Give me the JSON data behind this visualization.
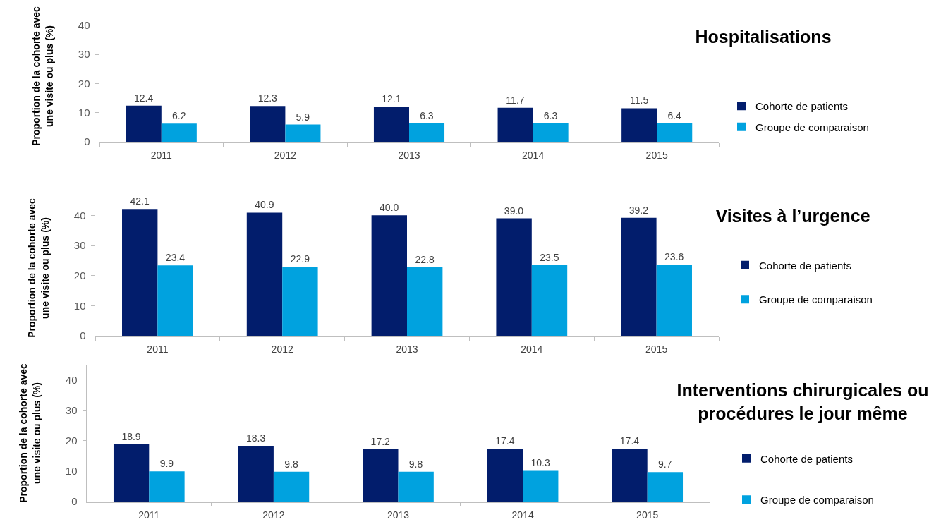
{
  "chart_data": [
    {
      "type": "bar",
      "title": "Hospitalisations",
      "ylabel": "Proportion de la cohorte avec\nune visite ou plus (%)",
      "categories": [
        "2011",
        "2012",
        "2013",
        "2014",
        "2015"
      ],
      "series": [
        {
          "name": "Cohorte de patients",
          "color": "#021d6c",
          "values": [
            12.4,
            12.3,
            12.1,
            11.7,
            11.5
          ],
          "value_labels": [
            "12.4",
            "12.3",
            "12.1",
            "11.7",
            "11.5"
          ]
        },
        {
          "name": "Groupe de comparaison",
          "color": "#00a2df",
          "values": [
            6.2,
            5.9,
            6.3,
            6.3,
            6.4
          ],
          "value_labels": [
            "6.2",
            "5.9",
            "6.3",
            "6.3",
            "6.4"
          ]
        }
      ],
      "ylim": [
        0,
        45
      ],
      "yticks": [
        0,
        10,
        20,
        30,
        40
      ],
      "grid": false,
      "legend": "right"
    },
    {
      "type": "bar",
      "title": "Visites à l’urgence",
      "ylabel": "Proportion de la cohorte avec\nune visite ou plus (%)",
      "categories": [
        "2011",
        "2012",
        "2013",
        "2014",
        "2015"
      ],
      "series": [
        {
          "name": "Cohorte de patients",
          "color": "#021d6c",
          "values": [
            42.1,
            40.9,
            40.0,
            39.0,
            39.2
          ],
          "value_labels": [
            "42.1",
            "40.9",
            "40.0",
            "39.0",
            "39.2"
          ]
        },
        {
          "name": "Groupe de comparaison",
          "color": "#00a2df",
          "values": [
            23.4,
            22.9,
            22.8,
            23.5,
            23.6
          ],
          "value_labels": [
            "23.4",
            "22.9",
            "22.8",
            "23.5",
            "23.6"
          ]
        }
      ],
      "ylim": [
        0,
        45
      ],
      "yticks": [
        0,
        10,
        20,
        30,
        40
      ],
      "grid": false,
      "legend": "right"
    },
    {
      "type": "bar",
      "title": "Interventions chirurgicales ou\nprocédures le jour même",
      "ylabel": "Proportion de la cohorte avec\nune visite ou plus (%)",
      "categories": [
        "2011",
        "2012",
        "2013",
        "2014",
        "2015"
      ],
      "series": [
        {
          "name": "Cohorte de patients",
          "color": "#021d6c",
          "values": [
            18.9,
            18.3,
            17.2,
            17.4,
            17.4
          ],
          "value_labels": [
            "18.9",
            "18.3",
            "17.2",
            "17.4",
            "17.4"
          ]
        },
        {
          "name": "Groupe de comparaison",
          "color": "#00a2df",
          "values": [
            9.9,
            9.8,
            9.8,
            10.3,
            9.7
          ],
          "value_labels": [
            "9.9",
            "9.8",
            "9.8",
            "10.3",
            "9.7"
          ]
        }
      ],
      "ylim": [
        0,
        45
      ],
      "yticks": [
        0,
        10,
        20,
        30,
        40
      ],
      "grid": false,
      "legend": "right"
    }
  ]
}
